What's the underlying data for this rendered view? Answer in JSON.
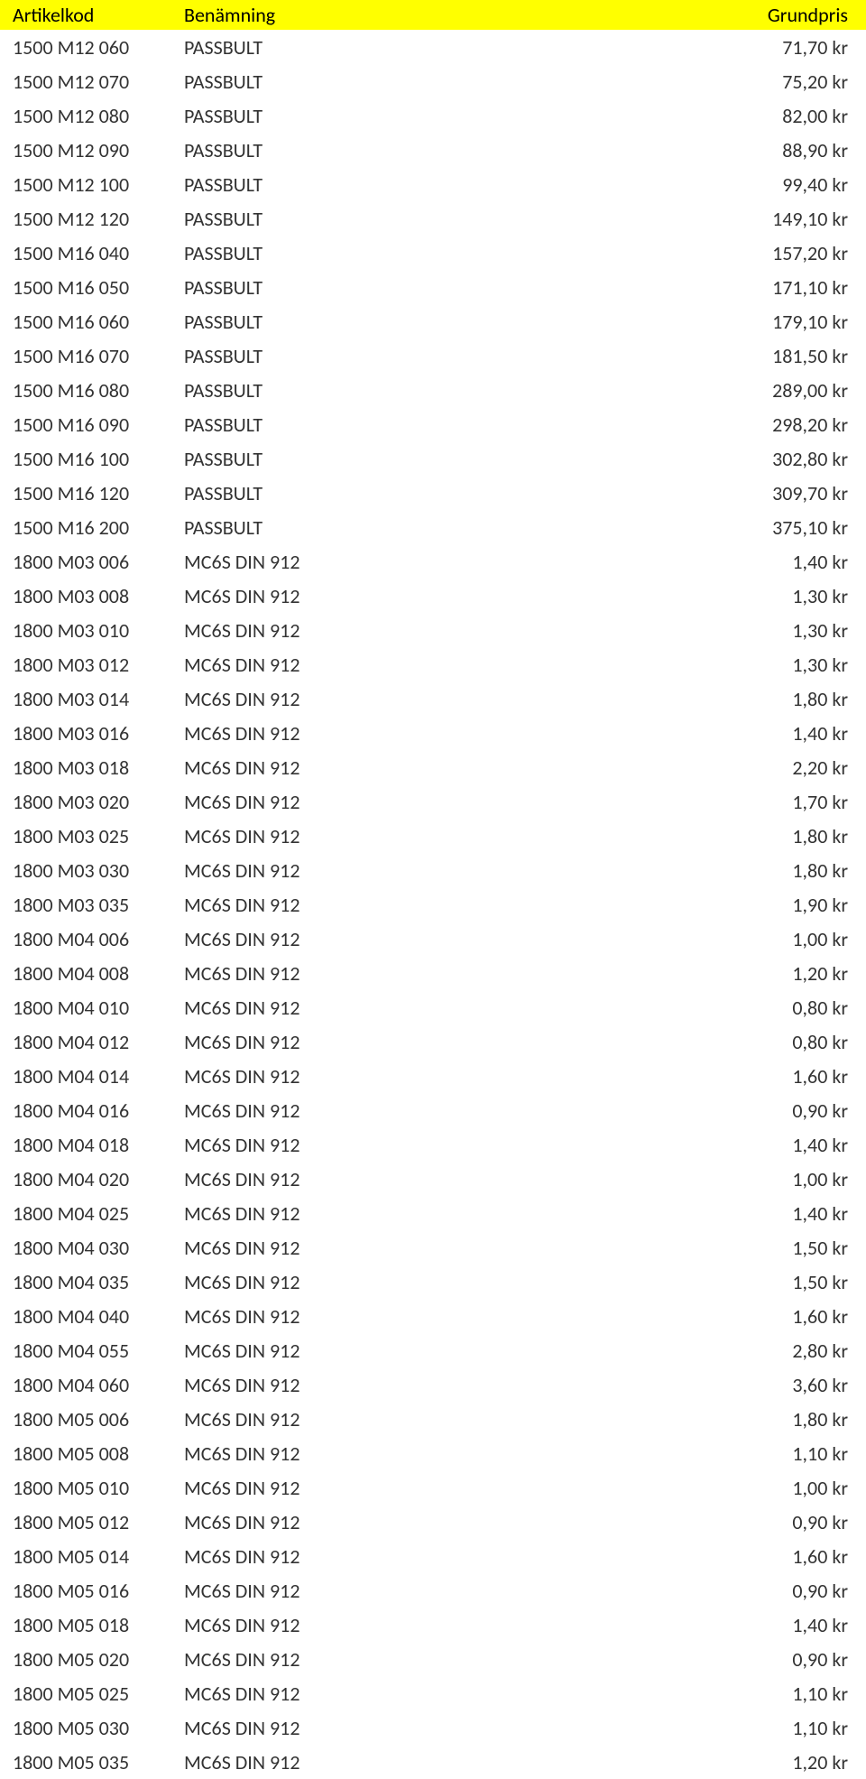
{
  "table": {
    "header_bg": "#ffff00",
    "columns": [
      {
        "key": "code",
        "label": "Artikelkod",
        "align": "left"
      },
      {
        "key": "name",
        "label": "Benämning",
        "align": "left"
      },
      {
        "key": "price",
        "label": "Grundpris",
        "align": "right"
      }
    ],
    "rows": [
      {
        "code": "1500 M12 060",
        "name": "PASSBULT",
        "price": "71,70 kr"
      },
      {
        "code": "1500 M12 070",
        "name": "PASSBULT",
        "price": "75,20 kr"
      },
      {
        "code": "1500 M12 080",
        "name": "PASSBULT",
        "price": "82,00 kr"
      },
      {
        "code": "1500 M12 090",
        "name": "PASSBULT",
        "price": "88,90 kr"
      },
      {
        "code": "1500 M12 100",
        "name": "PASSBULT",
        "price": "99,40 kr"
      },
      {
        "code": "1500 M12 120",
        "name": "PASSBULT",
        "price": "149,10 kr"
      },
      {
        "code": "1500 M16 040",
        "name": "PASSBULT",
        "price": "157,20 kr"
      },
      {
        "code": "1500 M16 050",
        "name": "PASSBULT",
        "price": "171,10 kr"
      },
      {
        "code": "1500 M16 060",
        "name": "PASSBULT",
        "price": "179,10 kr"
      },
      {
        "code": "1500 M16 070",
        "name": "PASSBULT",
        "price": "181,50 kr"
      },
      {
        "code": "1500 M16 080",
        "name": "PASSBULT",
        "price": "289,00 kr"
      },
      {
        "code": "1500 M16 090",
        "name": "PASSBULT",
        "price": "298,20 kr"
      },
      {
        "code": "1500 M16 100",
        "name": "PASSBULT",
        "price": "302,80 kr"
      },
      {
        "code": "1500 M16 120",
        "name": "PASSBULT",
        "price": "309,70 kr"
      },
      {
        "code": "1500 M16 200",
        "name": "PASSBULT",
        "price": "375,10 kr"
      },
      {
        "code": "1800 M03 006",
        "name": "MC6S DIN 912",
        "price": "1,40 kr"
      },
      {
        "code": "1800 M03 008",
        "name": "MC6S DIN 912",
        "price": "1,30 kr"
      },
      {
        "code": "1800 M03 010",
        "name": "MC6S DIN 912",
        "price": "1,30 kr"
      },
      {
        "code": "1800 M03 012",
        "name": "MC6S DIN 912",
        "price": "1,30 kr"
      },
      {
        "code": "1800 M03 014",
        "name": "MC6S DIN 912",
        "price": "1,80 kr"
      },
      {
        "code": "1800 M03 016",
        "name": "MC6S DIN 912",
        "price": "1,40 kr"
      },
      {
        "code": "1800 M03 018",
        "name": "MC6S DIN 912",
        "price": "2,20 kr"
      },
      {
        "code": "1800 M03 020",
        "name": "MC6S DIN 912",
        "price": "1,70 kr"
      },
      {
        "code": "1800 M03 025",
        "name": "MC6S DIN 912",
        "price": "1,80 kr"
      },
      {
        "code": "1800 M03 030",
        "name": "MC6S DIN 912",
        "price": "1,80 kr"
      },
      {
        "code": "1800 M03 035",
        "name": "MC6S DIN 912",
        "price": "1,90 kr"
      },
      {
        "code": "1800 M04 006",
        "name": "MC6S DIN 912",
        "price": "1,00 kr"
      },
      {
        "code": "1800 M04 008",
        "name": "MC6S DIN 912",
        "price": "1,20 kr"
      },
      {
        "code": "1800 M04 010",
        "name": "MC6S DIN 912",
        "price": "0,80 kr"
      },
      {
        "code": "1800 M04 012",
        "name": "MC6S DIN 912",
        "price": "0,80 kr"
      },
      {
        "code": "1800 M04 014",
        "name": "MC6S DIN 912",
        "price": "1,60 kr"
      },
      {
        "code": "1800 M04 016",
        "name": "MC6S DIN 912",
        "price": "0,90 kr"
      },
      {
        "code": "1800 M04 018",
        "name": "MC6S DIN 912",
        "price": "1,40 kr"
      },
      {
        "code": "1800 M04 020",
        "name": "MC6S DIN 912",
        "price": "1,00 kr"
      },
      {
        "code": "1800 M04 025",
        "name": "MC6S DIN 912",
        "price": "1,40 kr"
      },
      {
        "code": "1800 M04 030",
        "name": "MC6S DIN 912",
        "price": "1,50 kr"
      },
      {
        "code": "1800 M04 035",
        "name": "MC6S DIN 912",
        "price": "1,50 kr"
      },
      {
        "code": "1800 M04 040",
        "name": "MC6S DIN 912",
        "price": "1,60 kr"
      },
      {
        "code": "1800 M04 055",
        "name": "MC6S DIN 912",
        "price": "2,80 kr"
      },
      {
        "code": "1800 M04 060",
        "name": "MC6S DIN 912",
        "price": "3,60 kr"
      },
      {
        "code": "1800 M05 006",
        "name": "MC6S DIN 912",
        "price": "1,80 kr"
      },
      {
        "code": "1800 M05 008",
        "name": "MC6S DIN 912",
        "price": "1,10 kr"
      },
      {
        "code": "1800 M05 010",
        "name": "MC6S DIN 912",
        "price": "1,00 kr"
      },
      {
        "code": "1800 M05 012",
        "name": "MC6S DIN 912",
        "price": "0,90 kr"
      },
      {
        "code": "1800 M05 014",
        "name": "MC6S DIN 912",
        "price": "1,60 kr"
      },
      {
        "code": "1800 M05 016",
        "name": "MC6S DIN 912",
        "price": "0,90 kr"
      },
      {
        "code": "1800 M05 018",
        "name": "MC6S DIN 912",
        "price": "1,40 kr"
      },
      {
        "code": "1800 M05 020",
        "name": "MC6S DIN 912",
        "price": "0,90 kr"
      },
      {
        "code": "1800 M05 025",
        "name": "MC6S DIN 912",
        "price": "1,10 kr"
      },
      {
        "code": "1800 M05 030",
        "name": "MC6S DIN 912",
        "price": "1,10 kr"
      },
      {
        "code": "1800 M05 035",
        "name": "MC6S DIN 912",
        "price": "1,20 kr"
      }
    ]
  }
}
